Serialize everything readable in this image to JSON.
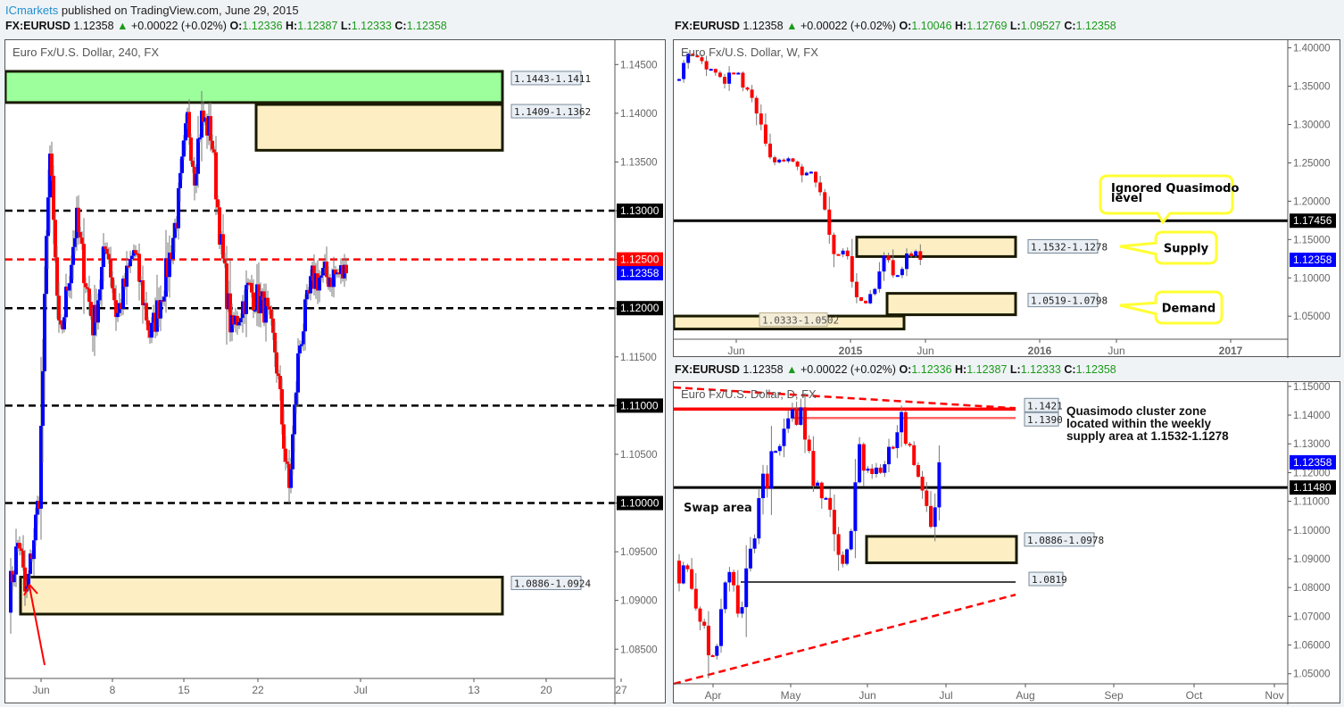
{
  "header": {
    "author": "ICmarkets",
    "published": " published on TradingView.com, June 29, 2015"
  },
  "colors": {
    "bull": "#0000ff",
    "bear": "#ff0000",
    "wick": "#777777",
    "zone_fill": "#fdefc3",
    "zone_border": "#1a1a00",
    "green_zone": "#9cff9c",
    "callout": "#ffff33",
    "label_bg": "#e9eff4"
  },
  "panels": {
    "h4": {
      "symbol": "FX:EURUSD",
      "price": "1.12358",
      "change": "+0.00022 (+0.02%)",
      "o": "1.12336",
      "h": "1.12387",
      "l": "1.12333",
      "c": "1.12358",
      "title": "Euro Fx/U.S. Dollar, 240, FX"
    },
    "weekly": {
      "symbol": "FX:EURUSD",
      "price": "1.12358",
      "change": "+0.00022 (+0.02%)",
      "o": "1.10046",
      "h": "1.12769",
      "l": "1.09527",
      "c": "1.12358",
      "title": "Euro Fx/U.S. Dollar, W, FX"
    },
    "daily": {
      "symbol": "FX:EURUSD",
      "price": "1.12358",
      "change": "+0.00022 (+0.02%)",
      "o": "1.12336",
      "h": "1.12387",
      "l": "1.12333",
      "c": "1.12358",
      "title": "Euro Fx/U.S. Dollar, D, FX"
    }
  },
  "chart_data": [
    {
      "type": "candlestick",
      "title": "Euro Fx/U.S. Dollar, 240, FX",
      "timeframe": "240",
      "x_ticks": [
        "Jun",
        "8",
        "15",
        "22",
        "Jul",
        "13",
        "20",
        "27"
      ],
      "y_ticks": [
        "1.14500",
        "1.14000",
        "1.13500",
        "1.13000",
        "1.12500",
        "1.12000",
        "1.11500",
        "1.11000",
        "1.10500",
        "1.10000",
        "1.09500",
        "1.09000",
        "1.08500"
      ],
      "ylim": [
        1.082,
        1.1475
      ],
      "levels": [
        {
          "price": 1.13,
          "label": "1.13000",
          "style": "dashed",
          "color": "#000000"
        },
        {
          "price": 1.125,
          "label": "1.12500",
          "style": "dashed",
          "color": "#ff0000"
        },
        {
          "price": 1.12,
          "label": "1.12000",
          "style": "dashed",
          "color": "#000000"
        },
        {
          "price": 1.11,
          "label": "1.11000",
          "style": "dashed",
          "color": "#000000"
        },
        {
          "price": 1.1,
          "label": "1.10000",
          "style": "dashed",
          "color": "#000000"
        }
      ],
      "last_price": {
        "price": 1.12358,
        "label": "1.12358"
      },
      "zones": [
        {
          "top": 1.1443,
          "bottom": 1.1411,
          "label": "1.1443-1.1411",
          "color": "green"
        },
        {
          "top": 1.1409,
          "bottom": 1.1362,
          "label": "1.1409-1.1362",
          "color": "tan"
        },
        {
          "top": 1.0924,
          "bottom": 1.0886,
          "label": "1.0886-1.0924",
          "color": "tan"
        }
      ],
      "annotations": [
        "red arrow pointing to demand zone near 1 June"
      ]
    },
    {
      "type": "candlestick",
      "title": "Euro Fx/U.S. Dollar, W, FX",
      "timeframe": "W",
      "x_ticks": [
        "Jun",
        "2015",
        "Jun",
        "2016",
        "Jun",
        "2017"
      ],
      "y_ticks": [
        "1.40000",
        "1.35000",
        "1.30000",
        "1.25000",
        "1.20000",
        "1.15000",
        "1.10000",
        "1.05000"
      ],
      "ylim": [
        1.02,
        1.41
      ],
      "levels": [
        {
          "price": 1.17456,
          "label": "1.17456",
          "style": "solid",
          "color": "#000000"
        }
      ],
      "last_price": {
        "price": 1.12358,
        "label": "1.12358"
      },
      "zones": [
        {
          "top": 1.1532,
          "bottom": 1.1278,
          "label": "1.1532-1.1278"
        },
        {
          "top": 1.0798,
          "bottom": 1.0519,
          "label": "1.0519-1.0798"
        },
        {
          "top": 1.0502,
          "bottom": 1.0333,
          "label": "1.0333-1.0502"
        }
      ],
      "callouts": [
        "Ignored Quasimodo level",
        "Supply",
        "Demand"
      ]
    },
    {
      "type": "candlestick",
      "title": "Euro Fx/U.S. Dollar, D, FX",
      "timeframe": "D",
      "x_ticks": [
        "Apr",
        "May",
        "Jun",
        "Jul",
        "Aug",
        "Sep",
        "Oct",
        "Nov"
      ],
      "y_ticks": [
        "1.15000",
        "1.14000",
        "1.13000",
        "1.12000",
        "1.11000",
        "1.10000",
        "1.09000",
        "1.08000",
        "1.07000",
        "1.06000",
        "1.05000"
      ],
      "ylim": [
        1.0465,
        1.1515
      ],
      "levels": [
        {
          "price": 1.1421,
          "label": "1.1421",
          "style": "solid",
          "color": "#ff0000"
        },
        {
          "price": 1.139,
          "label": "1.1390",
          "style": "solid",
          "color": "#ff6666"
        },
        {
          "price": 1.1148,
          "label": "1.11480",
          "style": "solid",
          "color": "#000000"
        },
        {
          "price": 1.0819,
          "label": "1.0819",
          "style": "solid",
          "color": "#444444"
        }
      ],
      "last_price": {
        "price": 1.12358,
        "label": "1.12358"
      },
      "zones": [
        {
          "top": 1.0978,
          "bottom": 1.0886,
          "label": "1.0886-1.0978"
        }
      ],
      "trendlines": [
        "descending red dashed from top-left",
        "ascending red dashed from Apr lows"
      ],
      "annotations": [
        "Quasimodo cluster zone located within the weekly supply area at 1.1532-1.1278",
        "Swap area"
      ]
    }
  ],
  "labels": {
    "qm_line1": "Quasimodo cluster zone",
    "qm_line2": "located within the weekly",
    "qm_line3": "supply area at 1.1532-1.1278",
    "swap": "Swap area",
    "ignored1": "Ignored Quasimodo",
    "ignored2": "level",
    "supply": "Supply",
    "demand": "Demand"
  }
}
